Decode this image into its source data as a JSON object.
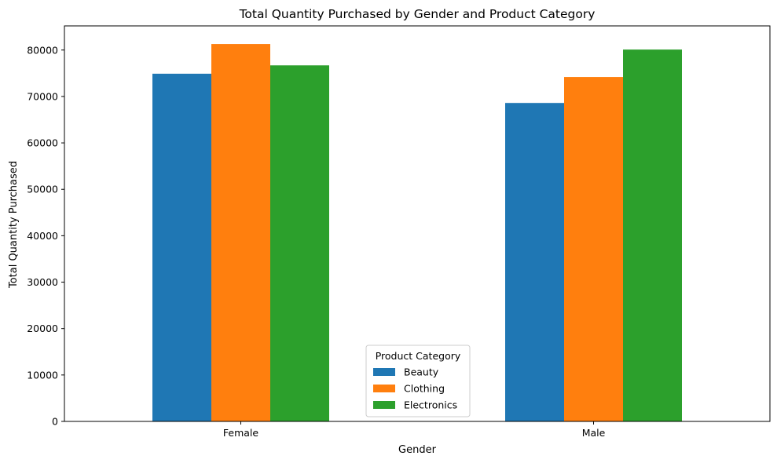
{
  "chart_data": {
    "type": "bar",
    "title": "Total Quantity Purchased by Gender and Product Category",
    "xlabel": "Gender",
    "ylabel": "Total Quantity Purchased",
    "categories": [
      "Female",
      "Male"
    ],
    "series": [
      {
        "name": "Beauty",
        "color": "#1f77b4",
        "values": [
          74900,
          68600
        ]
      },
      {
        "name": "Clothing",
        "color": "#ff7f0e",
        "values": [
          81300,
          74200
        ]
      },
      {
        "name": "Electronics",
        "color": "#2ca02c",
        "values": [
          76700,
          80100
        ]
      }
    ],
    "ylim": [
      0,
      85200
    ],
    "yticks": [
      0,
      10000,
      20000,
      30000,
      40000,
      50000,
      60000,
      70000,
      80000
    ],
    "grid": false,
    "legend": {
      "title": "Product Category",
      "position": "lower-center"
    }
  }
}
